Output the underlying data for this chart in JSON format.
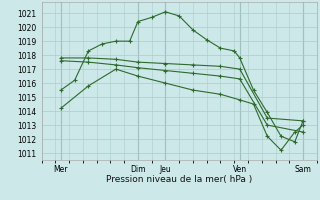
{
  "bg_color": "#cce8e8",
  "line_color": "#2d6a2d",
  "grid_color": "#aacccc",
  "grid_color_dark": "#88aaaa",
  "xlabel": "Pression niveau de la mer( hPa )",
  "yticks": [
    1011,
    1012,
    1013,
    1014,
    1015,
    1016,
    1017,
    1018,
    1019,
    1020,
    1021
  ],
  "ylim": [
    1010.5,
    1021.8
  ],
  "xlim": [
    0.0,
    10.0
  ],
  "xtick_positions": [
    0.7,
    3.5,
    4.5,
    7.2,
    9.5
  ],
  "xtick_labels": [
    "Mer",
    "Dim",
    "Jeu",
    "Ven",
    "Sam"
  ],
  "vlines": [
    0.7,
    3.5,
    4.5,
    7.2,
    9.5
  ],
  "series": [
    {
      "x": [
        0.7,
        1.2,
        1.7,
        2.2,
        2.7,
        3.2,
        3.5,
        4.0,
        4.5,
        5.0,
        5.5,
        6.0,
        6.5,
        7.0,
        7.2,
        7.7,
        8.2,
        8.7,
        9.2,
        9.5
      ],
      "y": [
        1015.5,
        1016.2,
        1018.3,
        1018.8,
        1019.0,
        1019.0,
        1020.4,
        1020.7,
        1021.1,
        1020.8,
        1019.8,
        1019.1,
        1018.5,
        1018.3,
        1017.8,
        1015.5,
        1013.9,
        1012.2,
        1011.8,
        1013.3
      ]
    },
    {
      "x": [
        0.7,
        1.7,
        2.7,
        3.5,
        4.5,
        5.5,
        6.5,
        7.2,
        8.2,
        9.5
      ],
      "y": [
        1017.8,
        1017.8,
        1017.7,
        1017.5,
        1017.4,
        1017.3,
        1017.2,
        1017.0,
        1013.5,
        1013.3
      ]
    },
    {
      "x": [
        0.7,
        1.7,
        2.7,
        3.5,
        4.5,
        5.5,
        6.5,
        7.2,
        8.2,
        9.5
      ],
      "y": [
        1017.6,
        1017.5,
        1017.3,
        1017.1,
        1016.9,
        1016.7,
        1016.5,
        1016.3,
        1013.0,
        1012.5
      ]
    },
    {
      "x": [
        0.7,
        1.7,
        2.7,
        3.5,
        4.5,
        5.5,
        6.5,
        7.2,
        7.7,
        8.2,
        8.7,
        9.2,
        9.5
      ],
      "y": [
        1014.2,
        1015.8,
        1017.0,
        1016.5,
        1016.0,
        1015.5,
        1015.2,
        1014.8,
        1014.5,
        1012.2,
        1011.2,
        1012.5,
        1013.0
      ]
    }
  ]
}
